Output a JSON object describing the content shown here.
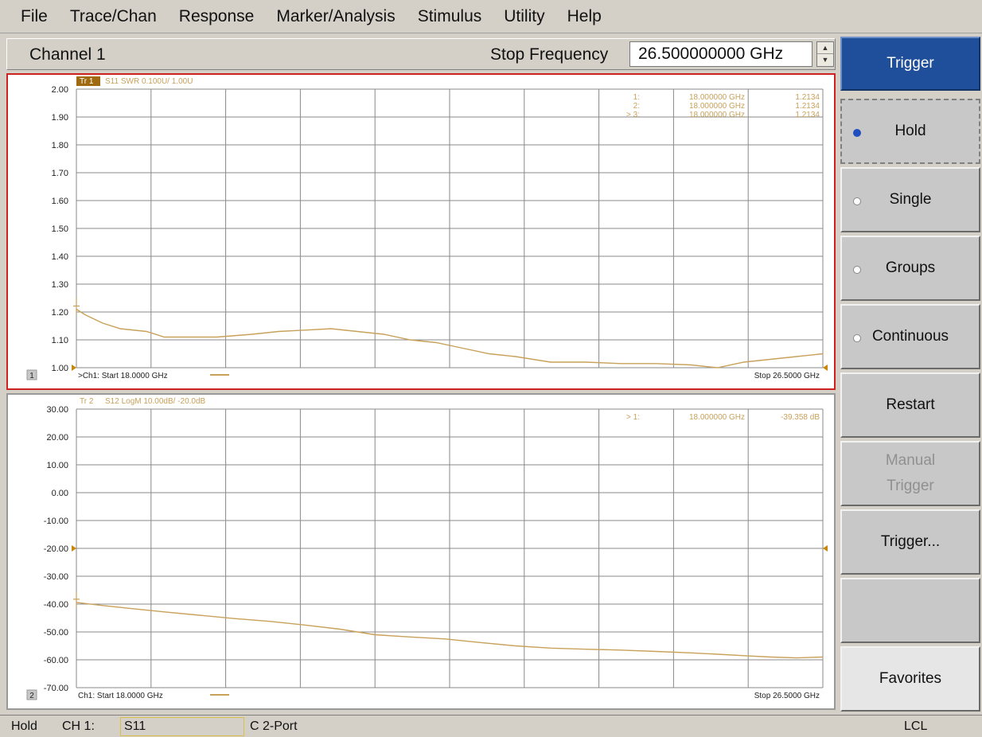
{
  "menu": [
    "File",
    "Trace/Chan",
    "Response",
    "Marker/Analysis",
    "Stimulus",
    "Utility",
    "Help"
  ],
  "channel_bar": {
    "title": "Channel 1",
    "stop_label": "Stop Frequency",
    "stop_value": "26.500000000 GHz"
  },
  "softkeys": {
    "header": "Trigger",
    "items": [
      {
        "label": "Hold",
        "radio": true,
        "selected": true
      },
      {
        "label": "Single",
        "radio": true,
        "selected": false
      },
      {
        "label": "Groups",
        "radio": true,
        "selected": false
      },
      {
        "label": "Continuous",
        "radio": true,
        "selected": false
      },
      {
        "label": "Restart"
      },
      {
        "label": "Manual Trigger",
        "disabled": true,
        "lines": [
          "Manual",
          "Trigger"
        ]
      },
      {
        "label": "Trigger..."
      },
      {
        "label": ""
      },
      {
        "label": "Favorites"
      }
    ]
  },
  "status": {
    "mode": "Hold",
    "channel": "CH 1:",
    "measurement": "S11",
    "calibration": "C 2-Port",
    "remote": "LCL"
  },
  "colors": {
    "trace": "#c8a15a",
    "active_window_border": "#cc2222",
    "grid": "#888888",
    "softkey_header": "#1f4f9a"
  },
  "chart_data": [
    {
      "type": "line",
      "window": "1",
      "trace_label": "Tr 1",
      "trace_info": "S11 SWR 0.100U/ 1.00U",
      "start_label": ">Ch1: Start 18.0000 GHz",
      "stop_label": "Stop 26.5000 GHz",
      "xlim": [
        18.0,
        26.5
      ],
      "ylim": [
        1.0,
        2.0
      ],
      "y_ticks": [
        "2.00",
        "1.90",
        "1.80",
        "1.70",
        "1.60",
        "1.50",
        "1.40",
        "1.30",
        "1.20",
        "1.10",
        "1.00"
      ],
      "reference_level": 1.0,
      "grid": true,
      "markers": [
        {
          "label": "1:",
          "freq": "18.000000 GHz",
          "value": "1.2134"
        },
        {
          "label": "2:",
          "freq": "18.000000 GHz",
          "value": "1.2134"
        },
        {
          "label": "> 3:",
          "freq": "18.000000 GHz",
          "value": "1.2134"
        }
      ],
      "series": [
        {
          "x": [
            18.0,
            18.1,
            18.3,
            18.5,
            18.8,
            19.0,
            19.3,
            19.6,
            20.0,
            20.3,
            20.6,
            20.9,
            21.2,
            21.5,
            21.8,
            22.1,
            22.4,
            22.7,
            23.0,
            23.4,
            23.8,
            24.2,
            24.6,
            25.0,
            25.3,
            25.6,
            25.9,
            26.2,
            26.5
          ],
          "y": [
            1.21,
            1.19,
            1.16,
            1.14,
            1.13,
            1.11,
            1.11,
            1.11,
            1.12,
            1.13,
            1.135,
            1.14,
            1.13,
            1.12,
            1.1,
            1.09,
            1.07,
            1.05,
            1.04,
            1.02,
            1.02,
            1.015,
            1.015,
            1.01,
            1.0,
            1.02,
            1.03,
            1.04,
            1.05
          ]
        }
      ]
    },
    {
      "type": "line",
      "window": "2",
      "trace_label": "Tr 2",
      "trace_info": "S12 LogM 10.00dB/ -20.0dB",
      "start_label": "Ch1: Start 18.0000 GHz",
      "stop_label": "Stop 26.5000 GHz",
      "xlim": [
        18.0,
        26.5
      ],
      "ylim": [
        -70.0,
        30.0
      ],
      "y_ticks": [
        "30.00",
        "20.00",
        "10.00",
        "0.00",
        "-10.00",
        "-20.00",
        "-30.00",
        "-40.00",
        "-50.00",
        "-60.00",
        "-70.00"
      ],
      "reference_level": -20.0,
      "grid": true,
      "markers": [
        {
          "label": "> 1:",
          "freq": "18.000000 GHz",
          "value": "-39.358 dB"
        }
      ],
      "series": [
        {
          "x": [
            18.0,
            18.3,
            18.6,
            19.0,
            19.4,
            19.8,
            20.2,
            20.6,
            21.0,
            21.4,
            21.8,
            22.2,
            22.6,
            23.0,
            23.4,
            23.8,
            24.2,
            24.6,
            25.0,
            25.3,
            25.6,
            25.9,
            26.2,
            26.5
          ],
          "y": [
            -39.4,
            -40.5,
            -41.5,
            -42.8,
            -44.0,
            -45.2,
            -46.2,
            -47.5,
            -49.0,
            -51.0,
            -51.8,
            -52.5,
            -53.8,
            -55.0,
            -55.8,
            -56.2,
            -56.5,
            -57.0,
            -57.5,
            -58.0,
            -58.5,
            -59.0,
            -59.3,
            -59.0
          ]
        }
      ]
    }
  ]
}
